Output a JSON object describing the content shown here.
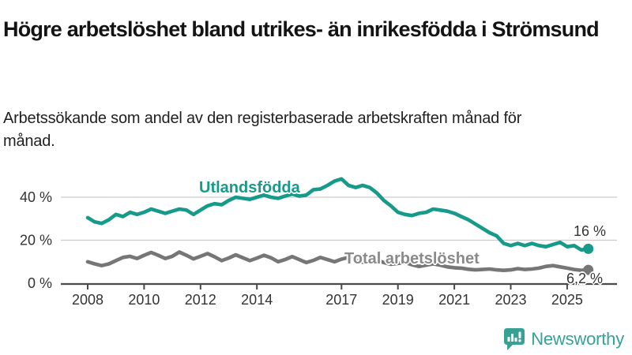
{
  "header": {
    "title": "Högre arbetslöshet bland utrikes- än inrikesfödda i Strömsund",
    "subtitle": "Arbetssökande som andel av den registerbaserade arbetskraften månad för månad."
  },
  "chart_data": {
    "type": "line",
    "title": "Högre arbetslöshet bland utrikes- än inrikesfödda i Strömsund",
    "subtitle": "Arbetssökande som andel av den registerbaserade arbetskraften månad för månad.",
    "unit": "%",
    "grid": true,
    "legend_position": "inline-labels",
    "x_axis": {
      "range": [
        2008,
        2025.9
      ],
      "ticks": [
        2008,
        2010,
        2012,
        2014,
        2017,
        2019,
        2021,
        2023,
        2025
      ]
    },
    "y_axis": {
      "range": [
        0,
        52
      ],
      "ticks": [
        0,
        20,
        40
      ],
      "tick_labels": [
        "0 %",
        "20 %",
        "40 %"
      ]
    },
    "x": [
      2008,
      2008.25,
      2008.5,
      2008.75,
      2009,
      2009.25,
      2009.5,
      2009.75,
      2010,
      2010.25,
      2010.5,
      2010.75,
      2011,
      2011.25,
      2011.5,
      2011.75,
      2012,
      2012.25,
      2012.5,
      2012.75,
      2013,
      2013.25,
      2013.5,
      2013.75,
      2014,
      2014.25,
      2014.5,
      2014.75,
      2015,
      2015.25,
      2015.5,
      2015.75,
      2016,
      2016.25,
      2016.5,
      2016.75,
      2017,
      2017.25,
      2017.5,
      2017.75,
      2018,
      2018.25,
      2018.5,
      2018.75,
      2019,
      2019.25,
      2019.5,
      2019.75,
      2020,
      2020.25,
      2020.5,
      2020.75,
      2021,
      2021.25,
      2021.5,
      2021.75,
      2022,
      2022.25,
      2022.5,
      2022.75,
      2023,
      2023.25,
      2023.5,
      2023.75,
      2024,
      2024.25,
      2024.5,
      2024.75,
      2025,
      2025.25,
      2025.5,
      2025.75
    ],
    "series": [
      {
        "name": "Utlandsfödda",
        "color": "#169b8b",
        "end_label": "16 %",
        "end_value": 16,
        "values": [
          30.5,
          28.5,
          27.8,
          29.5,
          32,
          31,
          33,
          32,
          33,
          34.5,
          33.5,
          32.5,
          33.5,
          34.5,
          34,
          32,
          34,
          36,
          37,
          36.5,
          38.5,
          40,
          39.5,
          39,
          40,
          41,
          40,
          39.5,
          40.5,
          41.5,
          40.5,
          41,
          43.5,
          43.8,
          45.5,
          47.5,
          48.5,
          45.5,
          44.5,
          45.5,
          44.5,
          42,
          38.5,
          36,
          33,
          32,
          31.5,
          32.5,
          33,
          34.5,
          34,
          33.5,
          32.5,
          31,
          29.5,
          27.5,
          25.5,
          23.5,
          22,
          18.5,
          17.5,
          18.5,
          17.5,
          18.5,
          17.5,
          17,
          18,
          19,
          17,
          17.5,
          15.5,
          16
        ]
      },
      {
        "name": "Total arbetslöshet",
        "color": "#767676",
        "end_label": "6,2 %",
        "end_value": 6.2,
        "values": [
          10,
          9,
          8.2,
          9,
          10.5,
          12,
          12.5,
          11.5,
          13,
          14.3,
          13,
          11.5,
          12.5,
          14.5,
          13,
          11.3,
          12.5,
          13.8,
          12.3,
          10.5,
          11.7,
          13.2,
          11.8,
          10.5,
          11.7,
          13,
          11.8,
          10,
          11,
          12.4,
          11,
          9.6,
          10.6,
          12,
          11,
          10,
          11.2,
          12,
          10.8,
          9.8,
          10.2,
          10.8,
          9.6,
          8.8,
          9.2,
          9.6,
          8.6,
          7.8,
          8.4,
          9,
          8.4,
          7.6,
          7.2,
          7,
          6.5,
          6.2,
          6.4,
          6.6,
          6.2,
          6,
          6.2,
          6.8,
          6.4,
          6.6,
          7,
          7.8,
          8.2,
          7.6,
          7,
          6.4,
          6,
          6.2
        ]
      }
    ]
  },
  "footer": {
    "brand": "Newsworthy"
  },
  "colors": {
    "accent_teal": "#169b8b",
    "series_gray": "#767676",
    "grid_line": "#cccccc",
    "axis_line": "#4a4a4a",
    "tick_text": "#333333",
    "logo_teal": "#38a193"
  }
}
